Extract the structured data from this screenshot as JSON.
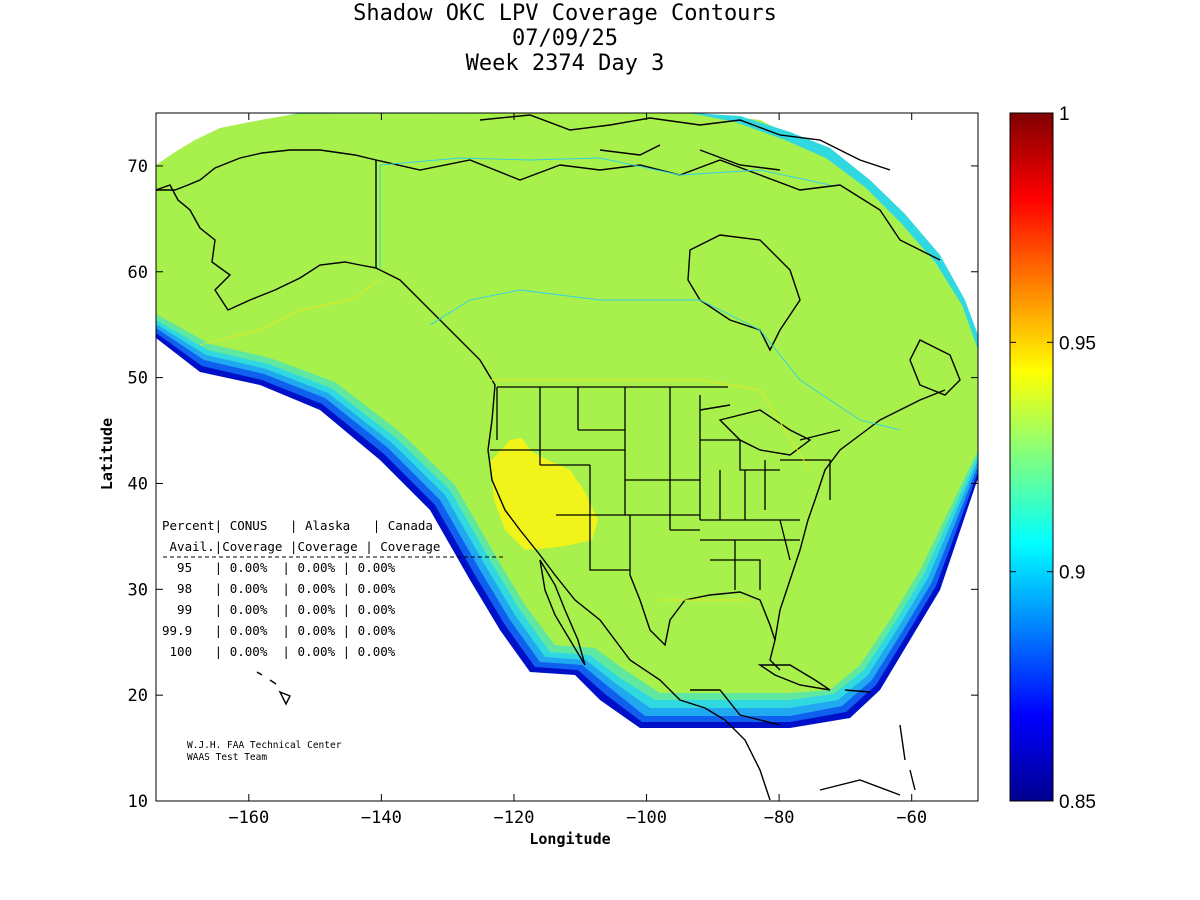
{
  "title": {
    "line1": "Shadow OKC LPV Coverage Contours",
    "line2": "07/09/25",
    "line3": "Week 2374 Day 3"
  },
  "axes": {
    "xlabel": "Longitude",
    "ylabel": "Latitude",
    "xlim": [
      -174,
      -50
    ],
    "ylim": [
      10,
      75
    ],
    "xticks": [
      -160,
      -140,
      -120,
      -100,
      -80,
      -60
    ],
    "yticks": [
      10,
      20,
      30,
      40,
      50,
      60,
      70
    ]
  },
  "colorbar": {
    "min": 0.85,
    "max": 1,
    "ticks": [
      "0.85",
      "0.9",
      "0.95",
      "1"
    ],
    "colormap": "jet",
    "colors": [
      "#00008f",
      "#0000ff",
      "#0080ff",
      "#00ffff",
      "#80ff80",
      "#ffff00",
      "#ff8000",
      "#ff0000",
      "#800000"
    ]
  },
  "coverage_colors": {
    "main": "#a8f04c",
    "high": "#f0f41a",
    "edge": [
      "#60e8a0",
      "#30d8e0",
      "#20a8f0",
      "#1060f0",
      "#0010c8"
    ]
  },
  "table": {
    "header1": "Percent| CONUS   | Alaska   | Canada",
    "header2": " Avail.|Coverage |Coverage | Coverage",
    "rows": [
      "  95   | 0.00%  | 0.00% | 0.00%",
      "  98   | 0.00%  | 0.00% | 0.00%",
      "  99   | 0.00%  | 0.00% | 0.00%",
      "99.9   | 0.00%  | 0.00% | 0.00%",
      " 100   | 0.00%  | 0.00% | 0.00%"
    ]
  },
  "credit": {
    "line1": "W.J.H. FAA Technical Center",
    "line2": "WAAS Test Team"
  }
}
